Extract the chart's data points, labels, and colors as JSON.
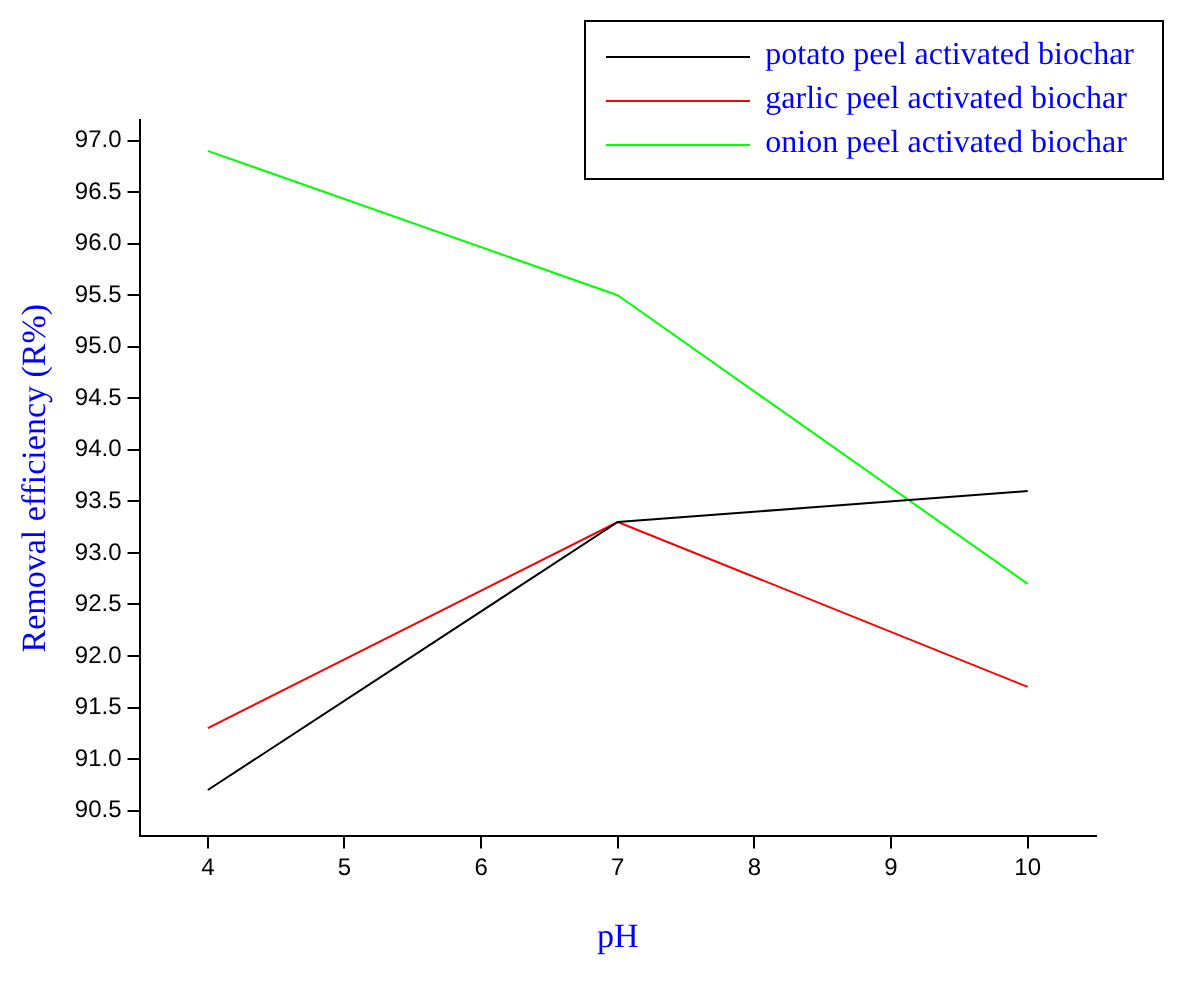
{
  "chart_data": {
    "type": "line",
    "xlabel": "pH",
    "ylabel": "Removal efficiency (R%)",
    "x": [
      4,
      7,
      10
    ],
    "series": [
      {
        "name": "potato peel activated biochar",
        "color": "#000000",
        "values": [
          90.7,
          93.3,
          93.6
        ]
      },
      {
        "name": "garlic peel activated biochar",
        "color": "#ff0000",
        "values": [
          91.3,
          93.3,
          91.7
        ]
      },
      {
        "name": "onion peel activated biochar",
        "color": "#00ff00",
        "values": [
          96.9,
          95.5,
          92.7
        ]
      }
    ],
    "xlim": [
      3.5,
      10.5
    ],
    "xticks": [
      4,
      5,
      6,
      7,
      8,
      9,
      10
    ],
    "ylim": [
      90.25,
      97.2
    ],
    "yticks": [
      90.5,
      {
        "value": 91,
        "label": "91.0"
      },
      91.5,
      {
        "value": 92,
        "label": "92.0"
      },
      92.5,
      {
        "value": 93,
        "label": "93.0"
      },
      93.5,
      {
        "value": 94,
        "label": "94.0"
      },
      94.5,
      {
        "value": 95,
        "label": "95.0"
      },
      95.5,
      {
        "value": 96,
        "label": "96.0"
      },
      96.5,
      {
        "value": 97,
        "label": "97.0"
      }
    ],
    "grid": false,
    "legend": "top right",
    "marker": "none",
    "line_style": "solid"
  }
}
